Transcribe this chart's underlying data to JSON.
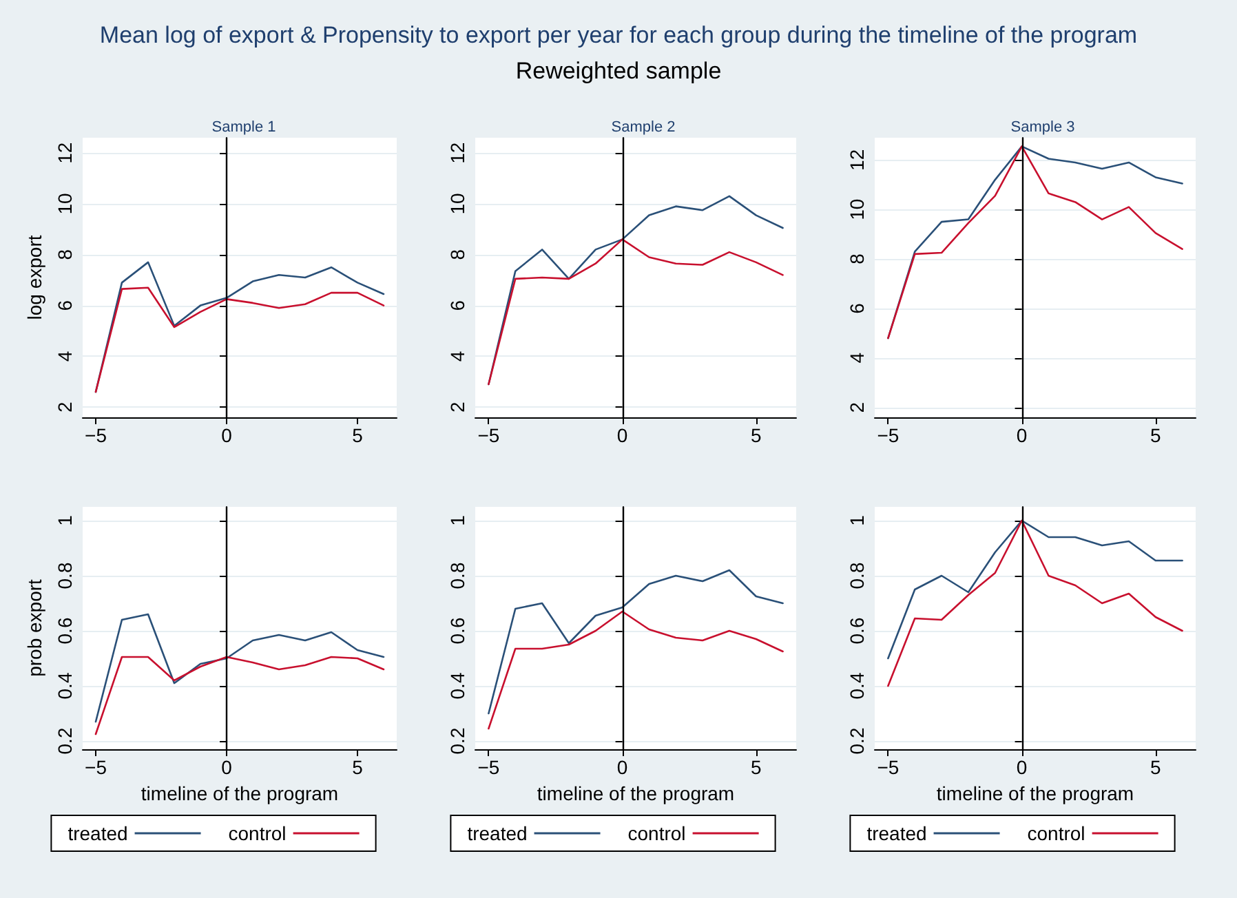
{
  "chart_data": [
    {
      "type": "other",
      "title": "Mean log of export & Propensity to export per year for each group during the timeline of the program",
      "subtitle": "Reweighted sample"
    },
    {
      "type": "line",
      "title": "Sample 1",
      "ylabel": "log export",
      "x": [
        -5,
        -4,
        -3,
        -2,
        -1,
        0,
        1,
        2,
        3,
        4,
        5,
        6
      ],
      "xlim": [
        -5.5,
        6.5
      ],
      "xticks": [
        -5,
        0,
        5
      ],
      "ylim": [
        1.6,
        12.6
      ],
      "yticks": [
        2,
        4,
        6,
        8,
        10,
        12
      ],
      "grid": "y",
      "ref_lines": [
        {
          "axis": "x",
          "value": 0,
          "color": "#000000"
        }
      ],
      "series": [
        {
          "color": "#2a5078",
          "values": [
            2.6,
            6.9,
            7.7,
            5.2,
            6.0,
            6.3,
            6.95,
            7.2,
            7.1,
            7.5,
            6.9,
            6.45
          ]
        },
        {
          "color": "#c8102e",
          "values": [
            2.6,
            6.65,
            6.7,
            5.15,
            5.75,
            6.25,
            6.1,
            5.9,
            6.05,
            6.5,
            6.5,
            6.0
          ]
        }
      ]
    },
    {
      "type": "line",
      "title": "Sample 2",
      "x": [
        -5,
        -4,
        -3,
        -2,
        -1,
        0,
        1,
        2,
        3,
        4,
        5,
        6
      ],
      "xlim": [
        -5.5,
        6.5
      ],
      "xticks": [
        -5,
        0,
        5
      ],
      "ylim": [
        1.6,
        12.6
      ],
      "yticks": [
        2,
        4,
        6,
        8,
        10,
        12
      ],
      "grid": "y",
      "ref_lines": [
        {
          "axis": "x",
          "value": 0,
          "color": "#000000"
        }
      ],
      "series": [
        {
          "color": "#2a5078",
          "values": [
            2.9,
            7.35,
            8.2,
            7.05,
            8.2,
            8.6,
            9.55,
            9.9,
            9.75,
            10.3,
            9.55,
            9.05
          ]
        },
        {
          "color": "#c8102e",
          "values": [
            2.9,
            7.05,
            7.1,
            7.05,
            7.65,
            8.6,
            7.9,
            7.65,
            7.6,
            8.1,
            7.7,
            7.2
          ]
        }
      ]
    },
    {
      "type": "line",
      "title": "Sample 3",
      "x": [
        -5,
        -4,
        -3,
        -2,
        -1,
        0,
        1,
        2,
        3,
        4,
        5,
        6
      ],
      "xlim": [
        -5.5,
        6.5
      ],
      "xticks": [
        -5,
        0,
        5
      ],
      "ylim": [
        1.6,
        12.9
      ],
      "yticks": [
        2,
        4,
        6,
        8,
        10,
        12
      ],
      "grid": "y",
      "ref_lines": [
        {
          "axis": "x",
          "value": 0,
          "color": "#000000"
        }
      ],
      "series": [
        {
          "color": "#2a5078",
          "values": [
            4.8,
            8.3,
            9.5,
            9.6,
            11.2,
            12.55,
            12.05,
            11.9,
            11.65,
            11.9,
            11.3,
            11.05
          ]
        },
        {
          "color": "#c8102e",
          "values": [
            4.8,
            8.2,
            8.25,
            9.45,
            10.55,
            12.55,
            10.65,
            10.3,
            9.6,
            10.1,
            9.05,
            8.4
          ]
        }
      ]
    },
    {
      "type": "line",
      "xlabel": "timeline of the program",
      "ylabel": "prob export",
      "x": [
        -5,
        -4,
        -3,
        -2,
        -1,
        0,
        1,
        2,
        3,
        4,
        5,
        6
      ],
      "xlim": [
        -5.5,
        6.5
      ],
      "xticks": [
        -5,
        0,
        5
      ],
      "ylim": [
        0.17,
        1.05
      ],
      "yticks": [
        0.2,
        0.4,
        0.6,
        0.8,
        1
      ],
      "grid": "y",
      "legend": "bottom",
      "ref_lines": [
        {
          "axis": "x",
          "value": 0,
          "color": "#000000"
        }
      ],
      "series": [
        {
          "name": "treated",
          "color": "#2a5078",
          "values": [
            0.27,
            0.64,
            0.66,
            0.41,
            0.48,
            0.5,
            0.565,
            0.585,
            0.565,
            0.595,
            0.53,
            0.505
          ]
        },
        {
          "name": "control",
          "color": "#c8102e",
          "values": [
            0.225,
            0.505,
            0.505,
            0.42,
            0.47,
            0.505,
            0.485,
            0.46,
            0.475,
            0.505,
            0.5,
            0.46
          ]
        }
      ]
    },
    {
      "type": "line",
      "xlabel": "timeline of the program",
      "x": [
        -5,
        -4,
        -3,
        -2,
        -1,
        0,
        1,
        2,
        3,
        4,
        5,
        6
      ],
      "xlim": [
        -5.5,
        6.5
      ],
      "xticks": [
        -5,
        0,
        5
      ],
      "ylim": [
        0.17,
        1.05
      ],
      "yticks": [
        0.2,
        0.4,
        0.6,
        0.8,
        1
      ],
      "grid": "y",
      "legend": "bottom",
      "ref_lines": [
        {
          "axis": "x",
          "value": 0,
          "color": "#000000"
        }
      ],
      "series": [
        {
          "name": "treated",
          "color": "#2a5078",
          "values": [
            0.3,
            0.68,
            0.7,
            0.555,
            0.655,
            0.685,
            0.77,
            0.8,
            0.78,
            0.82,
            0.725,
            0.7
          ]
        },
        {
          "name": "control",
          "color": "#c8102e",
          "values": [
            0.245,
            0.535,
            0.535,
            0.55,
            0.6,
            0.67,
            0.605,
            0.575,
            0.565,
            0.6,
            0.57,
            0.525
          ]
        }
      ]
    },
    {
      "type": "line",
      "xlabel": "timeline of the program",
      "x": [
        -5,
        -4,
        -3,
        -2,
        -1,
        0,
        1,
        2,
        3,
        4,
        5,
        6
      ],
      "xlim": [
        -5.5,
        6.5
      ],
      "xticks": [
        -5,
        0,
        5
      ],
      "ylim": [
        0.17,
        1.05
      ],
      "yticks": [
        0.2,
        0.4,
        0.6,
        0.8,
        1
      ],
      "grid": "y",
      "legend": "bottom",
      "ref_lines": [
        {
          "axis": "x",
          "value": 0,
          "color": "#000000"
        }
      ],
      "series": [
        {
          "name": "treated",
          "color": "#2a5078",
          "values": [
            0.5,
            0.75,
            0.8,
            0.74,
            0.885,
            1.0,
            0.94,
            0.94,
            0.91,
            0.925,
            0.855,
            0.855
          ]
        },
        {
          "name": "control",
          "color": "#c8102e",
          "values": [
            0.4,
            0.645,
            0.64,
            0.73,
            0.81,
            1.0,
            0.8,
            0.765,
            0.7,
            0.735,
            0.65,
            0.6
          ]
        }
      ]
    }
  ]
}
